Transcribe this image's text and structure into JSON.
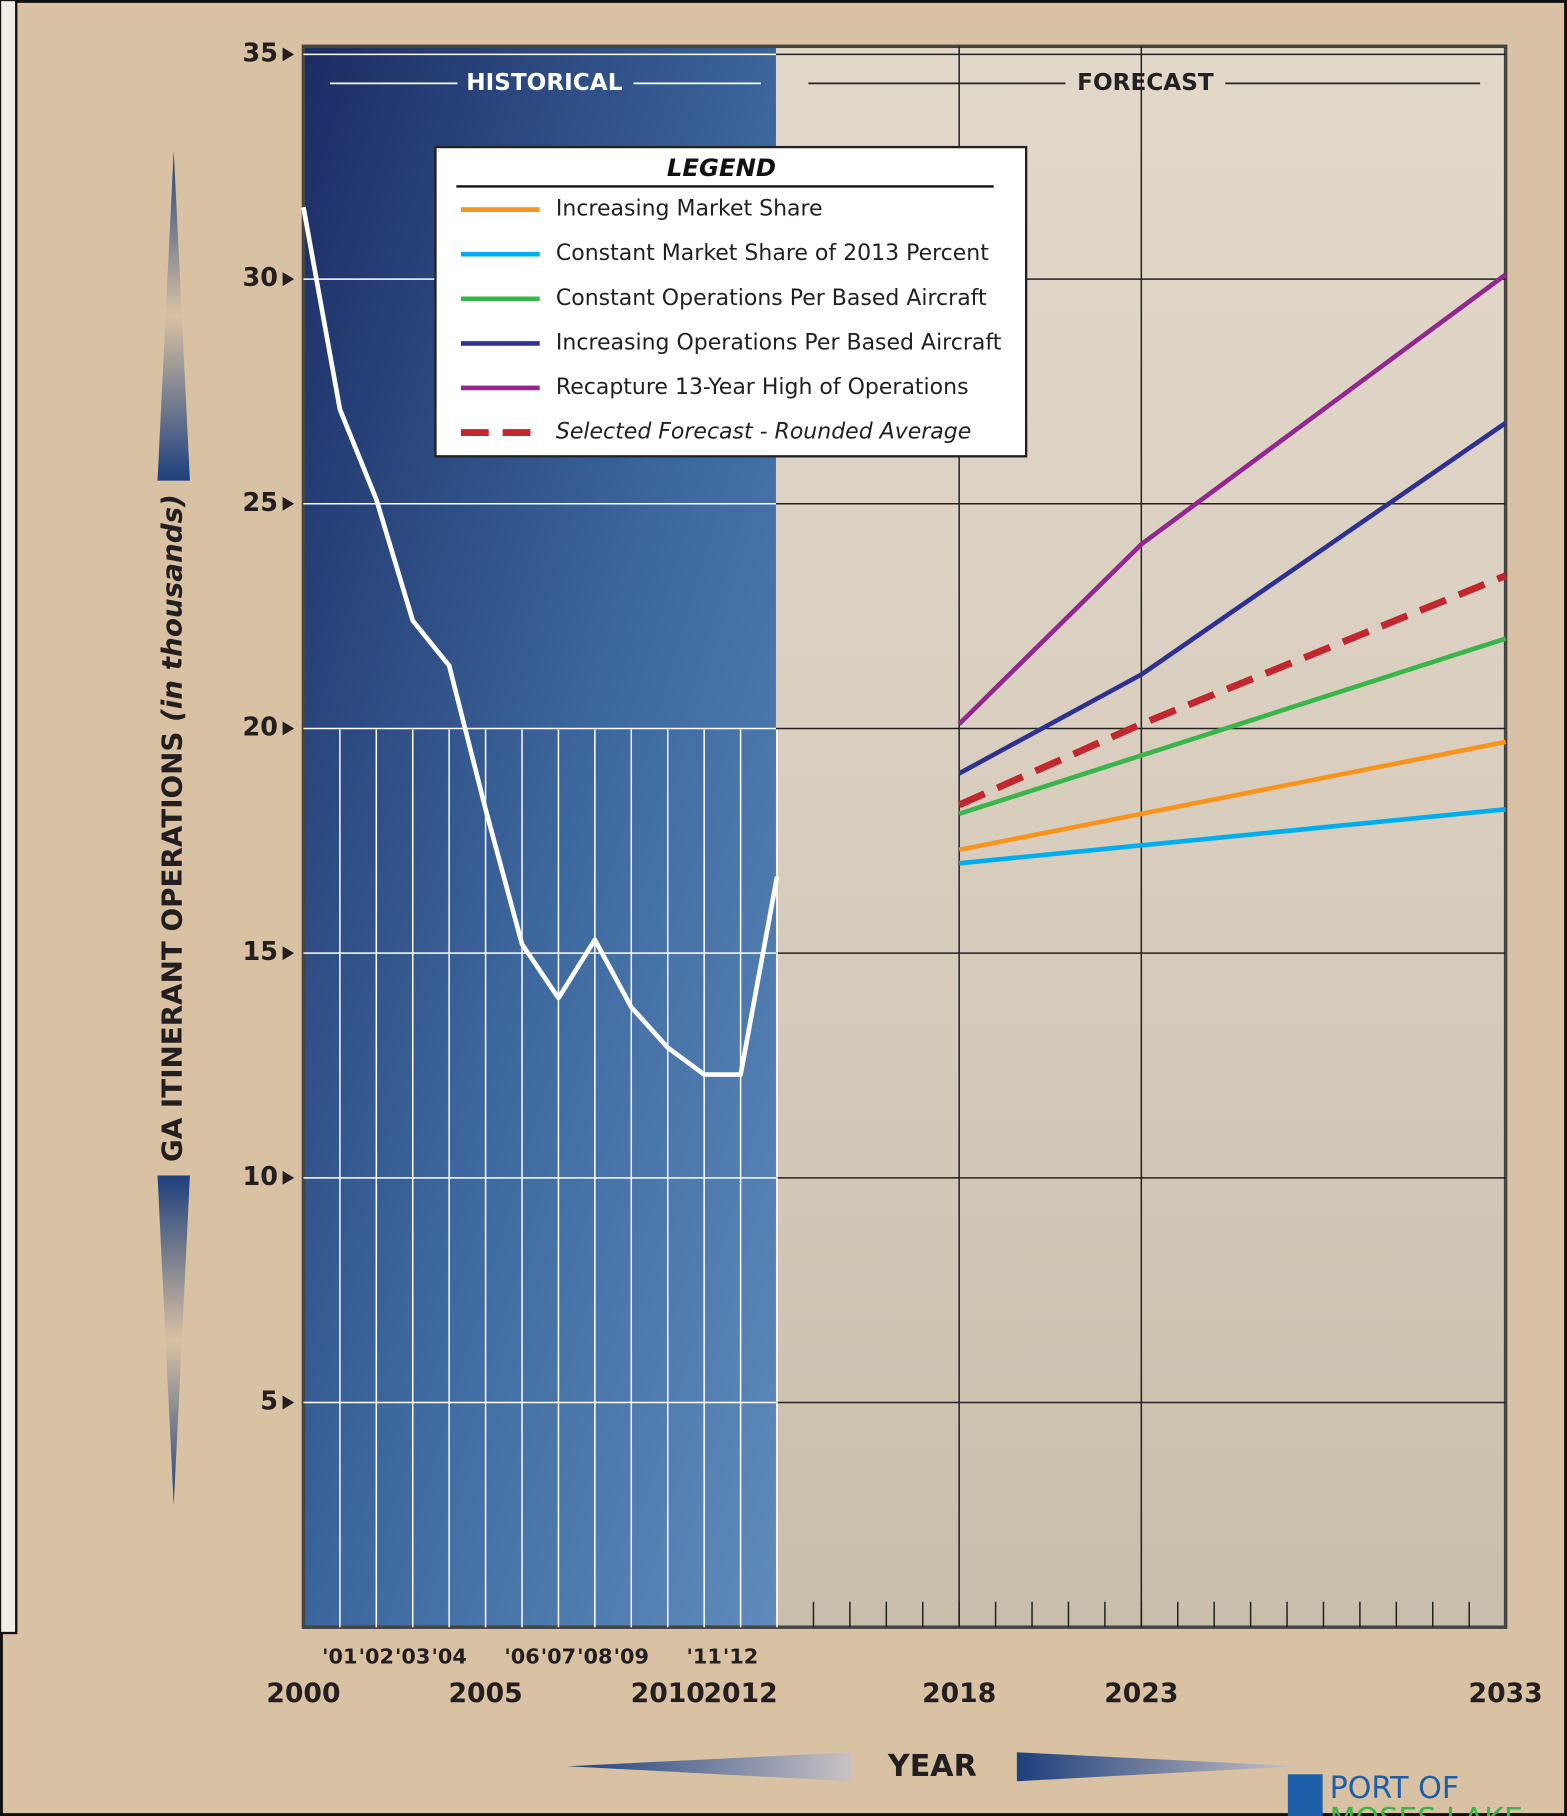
{
  "chart_data": {
    "type": "line",
    "y_label": "GA ITINERANT OPERATIONS",
    "y_label_note": "(in thousands)",
    "x_label": "YEAR",
    "section_labels": [
      "HISTORICAL",
      "FORECAST"
    ],
    "legend_title": "LEGEND",
    "logo": [
      "PORT OF",
      "MOSES LAKE"
    ],
    "xlim": [
      2000,
      2033
    ],
    "xticks": [
      2000,
      2005,
      2010,
      2012,
      2018,
      2023,
      2033
    ],
    "x_minor_ticks": [
      {
        "value": 2001,
        "label": "'01"
      },
      {
        "value": 2002,
        "label": "'02"
      },
      {
        "value": 2003,
        "label": "'03"
      },
      {
        "value": 2004,
        "label": "'04"
      },
      {
        "value": 2006,
        "label": "'06"
      },
      {
        "value": 2007,
        "label": "'07"
      },
      {
        "value": 2008,
        "label": "'08"
      },
      {
        "value": 2009,
        "label": "'09"
      },
      {
        "value": 2011,
        "label": "'11"
      },
      {
        "value": 2012,
        "label": "'12"
      }
    ],
    "ylim": [
      0,
      35
    ],
    "yticks": [
      5,
      10,
      15,
      20,
      25,
      30,
      35
    ],
    "grid": true,
    "series": [
      {
        "name": "Historical",
        "color": "#ffffff",
        "legend": false,
        "x": [
          2000,
          2001,
          2002,
          2003,
          2004,
          2005,
          2006,
          2007,
          2008,
          2009,
          2010,
          2011,
          2012,
          2013
        ],
        "values": [
          31.6,
          27.1,
          25.1,
          22.4,
          21.4,
          18.2,
          15.2,
          14.0,
          15.3,
          13.8,
          12.9,
          12.3,
          12.3,
          16.7
        ]
      },
      {
        "name": "Increasing Market Share",
        "color": "#f7941d",
        "x": [
          2018,
          2023,
          2033
        ],
        "values": [
          17.3,
          18.1,
          19.7
        ]
      },
      {
        "name": "Constant Market Share of 2013 Percent",
        "color": "#00aeef",
        "x": [
          2018,
          2023,
          2033
        ],
        "values": [
          17.0,
          17.4,
          18.2
        ]
      },
      {
        "name": "Constant Operations Per Based Aircraft",
        "color": "#39b54a",
        "x": [
          2018,
          2023,
          2033
        ],
        "values": [
          18.1,
          19.4,
          22.0
        ]
      },
      {
        "name": "Increasing Operations Per Based Aircraft",
        "color": "#2e3192",
        "x": [
          2018,
          2023,
          2033
        ],
        "values": [
          19.0,
          21.2,
          26.8
        ]
      },
      {
        "name": "Recapture 13-Year High of Operations",
        "color": "#92278f",
        "x": [
          2018,
          2023,
          2033
        ],
        "values": [
          20.1,
          24.1,
          30.1
        ]
      },
      {
        "name": "Selected Forecast - Rounded Average",
        "color": "#c1272d",
        "dashed": true,
        "x": [
          2018,
          2023,
          2033
        ],
        "values": [
          18.3,
          20.1,
          23.4
        ]
      }
    ]
  }
}
